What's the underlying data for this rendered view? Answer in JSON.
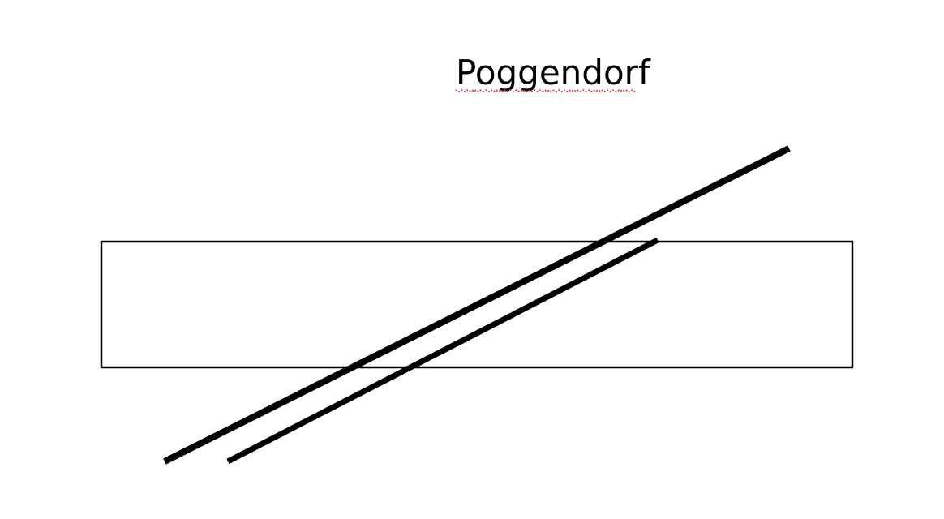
{
  "title": "Poggendorf",
  "colors": {
    "ink": "#000000",
    "spellcheck_underline": "#e03030",
    "background": "#ffffff"
  }
}
